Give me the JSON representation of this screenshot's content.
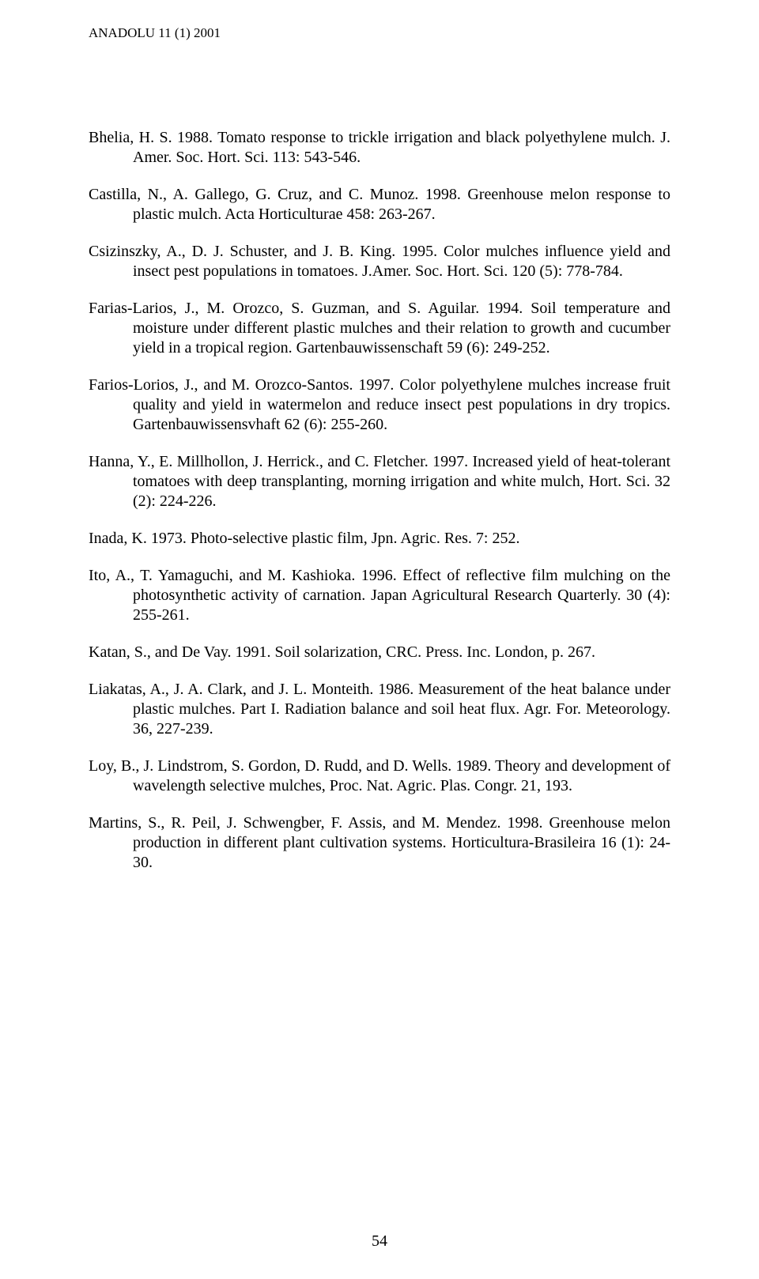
{
  "header": "ANADOLU 11 (1) 2001",
  "pageNumber": "54",
  "refs": [
    "Bhelia, H. S. 1988. Tomato response to trickle irrigation and black polyethylene mulch. J. Amer. Soc. Hort. Sci. 113: 543-546.",
    "Castilla, N., A. Gallego, G. Cruz, and C. Munoz. 1998. Greenhouse melon response to plastic mulch. Acta Horticulturae 458: 263-267.",
    "Csizinszky, A., D. J. Schuster, and J. B. King. 1995. Color mulches influence yield and insect pest populations in tomatoes. J.Amer. Soc. Hort. Sci. 120 (5): 778-784.",
    "Farias-Larios, J., M. Orozco, S. Guzman, and S. Aguilar. 1994. Soil temperature and moisture under different plastic mulches and their relation to growth and cucumber yield in a tropical region. Gartenbauwissenschaft 59 (6): 249-252.",
    "Farios-Lorios, J., and M. Orozco-Santos. 1997. Color polyethylene mulches increase fruit quality and yield in watermelon and reduce insect pest populations in dry tropics. Gartenbauwissensvhaft 62 (6): 255-260.",
    "Hanna, Y., E. Millhollon, J. Herrick., and C. Fletcher. 1997. Increased yield of heat-tolerant tomatoes with deep transplanting, morning irrigation and white mulch, Hort. Sci. 32 (2): 224-226.",
    "Inada, K. 1973. Photo-selective plastic film, Jpn. Agric. Res. 7: 252.",
    "Ito, A., T. Yamaguchi, and M. Kashioka. 1996. Effect of reflective film mulching on the photosynthetic activity of carnation. Japan Agricultural Research Quarterly. 30 (4): 255-261.",
    "Katan, S., and De Vay. 1991. Soil solarization, CRC. Press. Inc. London, p. 267.",
    "Liakatas, A., J. A. Clark, and J. L. Monteith. 1986. Measurement of the heat balance under plastic mulches. Part I. Radiation balance and soil heat flux. Agr. For. Meteorology. 36, 227-239.",
    "Loy, B., J. Lindstrom, S. Gordon, D. Rudd, and D. Wells. 1989. Theory and development of wavelength selective mulches, Proc. Nat. Agric. Plas. Congr. 21, 193.",
    "Martins, S., R. Peil, J. Schwengber, F. Assis, and M. Mendez. 1998. Greenhouse melon production in different plant cultivation systems. Horticultura-Brasileira 16 (1): 24-30."
  ]
}
